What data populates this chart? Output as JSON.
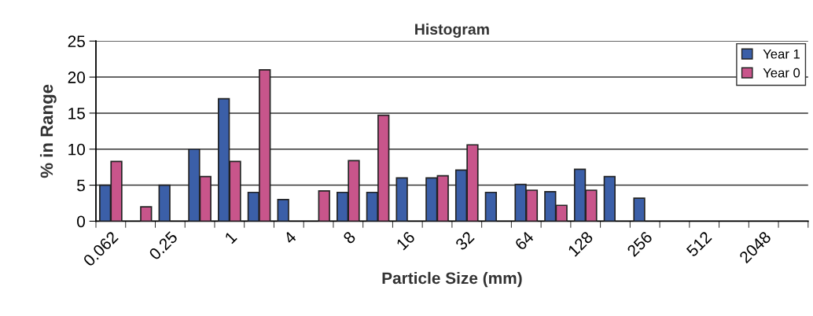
{
  "chart_data": {
    "type": "bar",
    "title": "Histogram",
    "xlabel": "Particle Size (mm)",
    "ylabel": "% in Range",
    "categories": [
      "0.062",
      null,
      "0.25",
      null,
      "1",
      null,
      "4",
      null,
      "8",
      null,
      "16",
      null,
      "32",
      null,
      "64",
      null,
      "128",
      null,
      "256",
      null,
      "512",
      null,
      "2048",
      null
    ],
    "series": [
      {
        "name": "Year 1",
        "color": "#3b5fa8",
        "values": [
          5,
          null,
          5,
          10,
          17,
          4,
          3,
          null,
          4,
          4,
          6,
          6,
          7.1,
          4,
          5.1,
          4.1,
          7.2,
          6.2,
          3.2,
          null,
          null,
          null,
          null,
          null
        ]
      },
      {
        "name": "Year 0",
        "color": "#c8558b",
        "values": [
          8.3,
          2,
          null,
          6.2,
          8.3,
          21,
          null,
          4.2,
          8.4,
          14.7,
          null,
          6.3,
          10.6,
          null,
          4.3,
          2.2,
          4.3,
          null,
          null,
          null,
          null,
          null,
          null,
          null
        ]
      }
    ],
    "ylim": [
      0,
      25
    ],
    "yticks": [
      0,
      5,
      10,
      15,
      20,
      25
    ],
    "grid": "y",
    "legend": "top right"
  }
}
